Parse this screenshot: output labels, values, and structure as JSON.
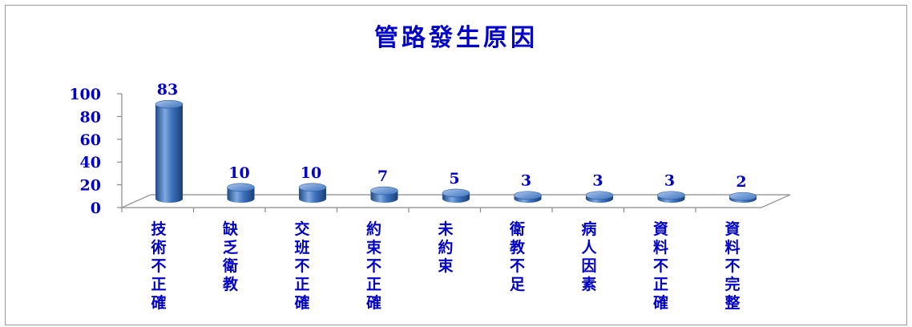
{
  "chart_data": {
    "type": "bar",
    "title": "管路發生原因",
    "categories": [
      "技術不正確",
      "缺乏衛教",
      "交班不正確",
      "約束不正確",
      "未約束",
      "衛教不足",
      "病人因素",
      "資料不正確",
      "資料不完整"
    ],
    "values": [
      83,
      10,
      10,
      7,
      5,
      3,
      3,
      3,
      2
    ],
    "ylim": [
      0,
      100
    ],
    "yticks": [
      0,
      20,
      40,
      60,
      80,
      100
    ],
    "bar_style": "3d-cylinder",
    "data_labels": true,
    "legend": "none",
    "gridlines": false
  },
  "colors": {
    "text": "#0000cc",
    "bar_main": "#3d72bd",
    "bar_dark": "#1f4a86",
    "bar_light": "#8cb3e6",
    "axis": "#8a8a8a"
  }
}
